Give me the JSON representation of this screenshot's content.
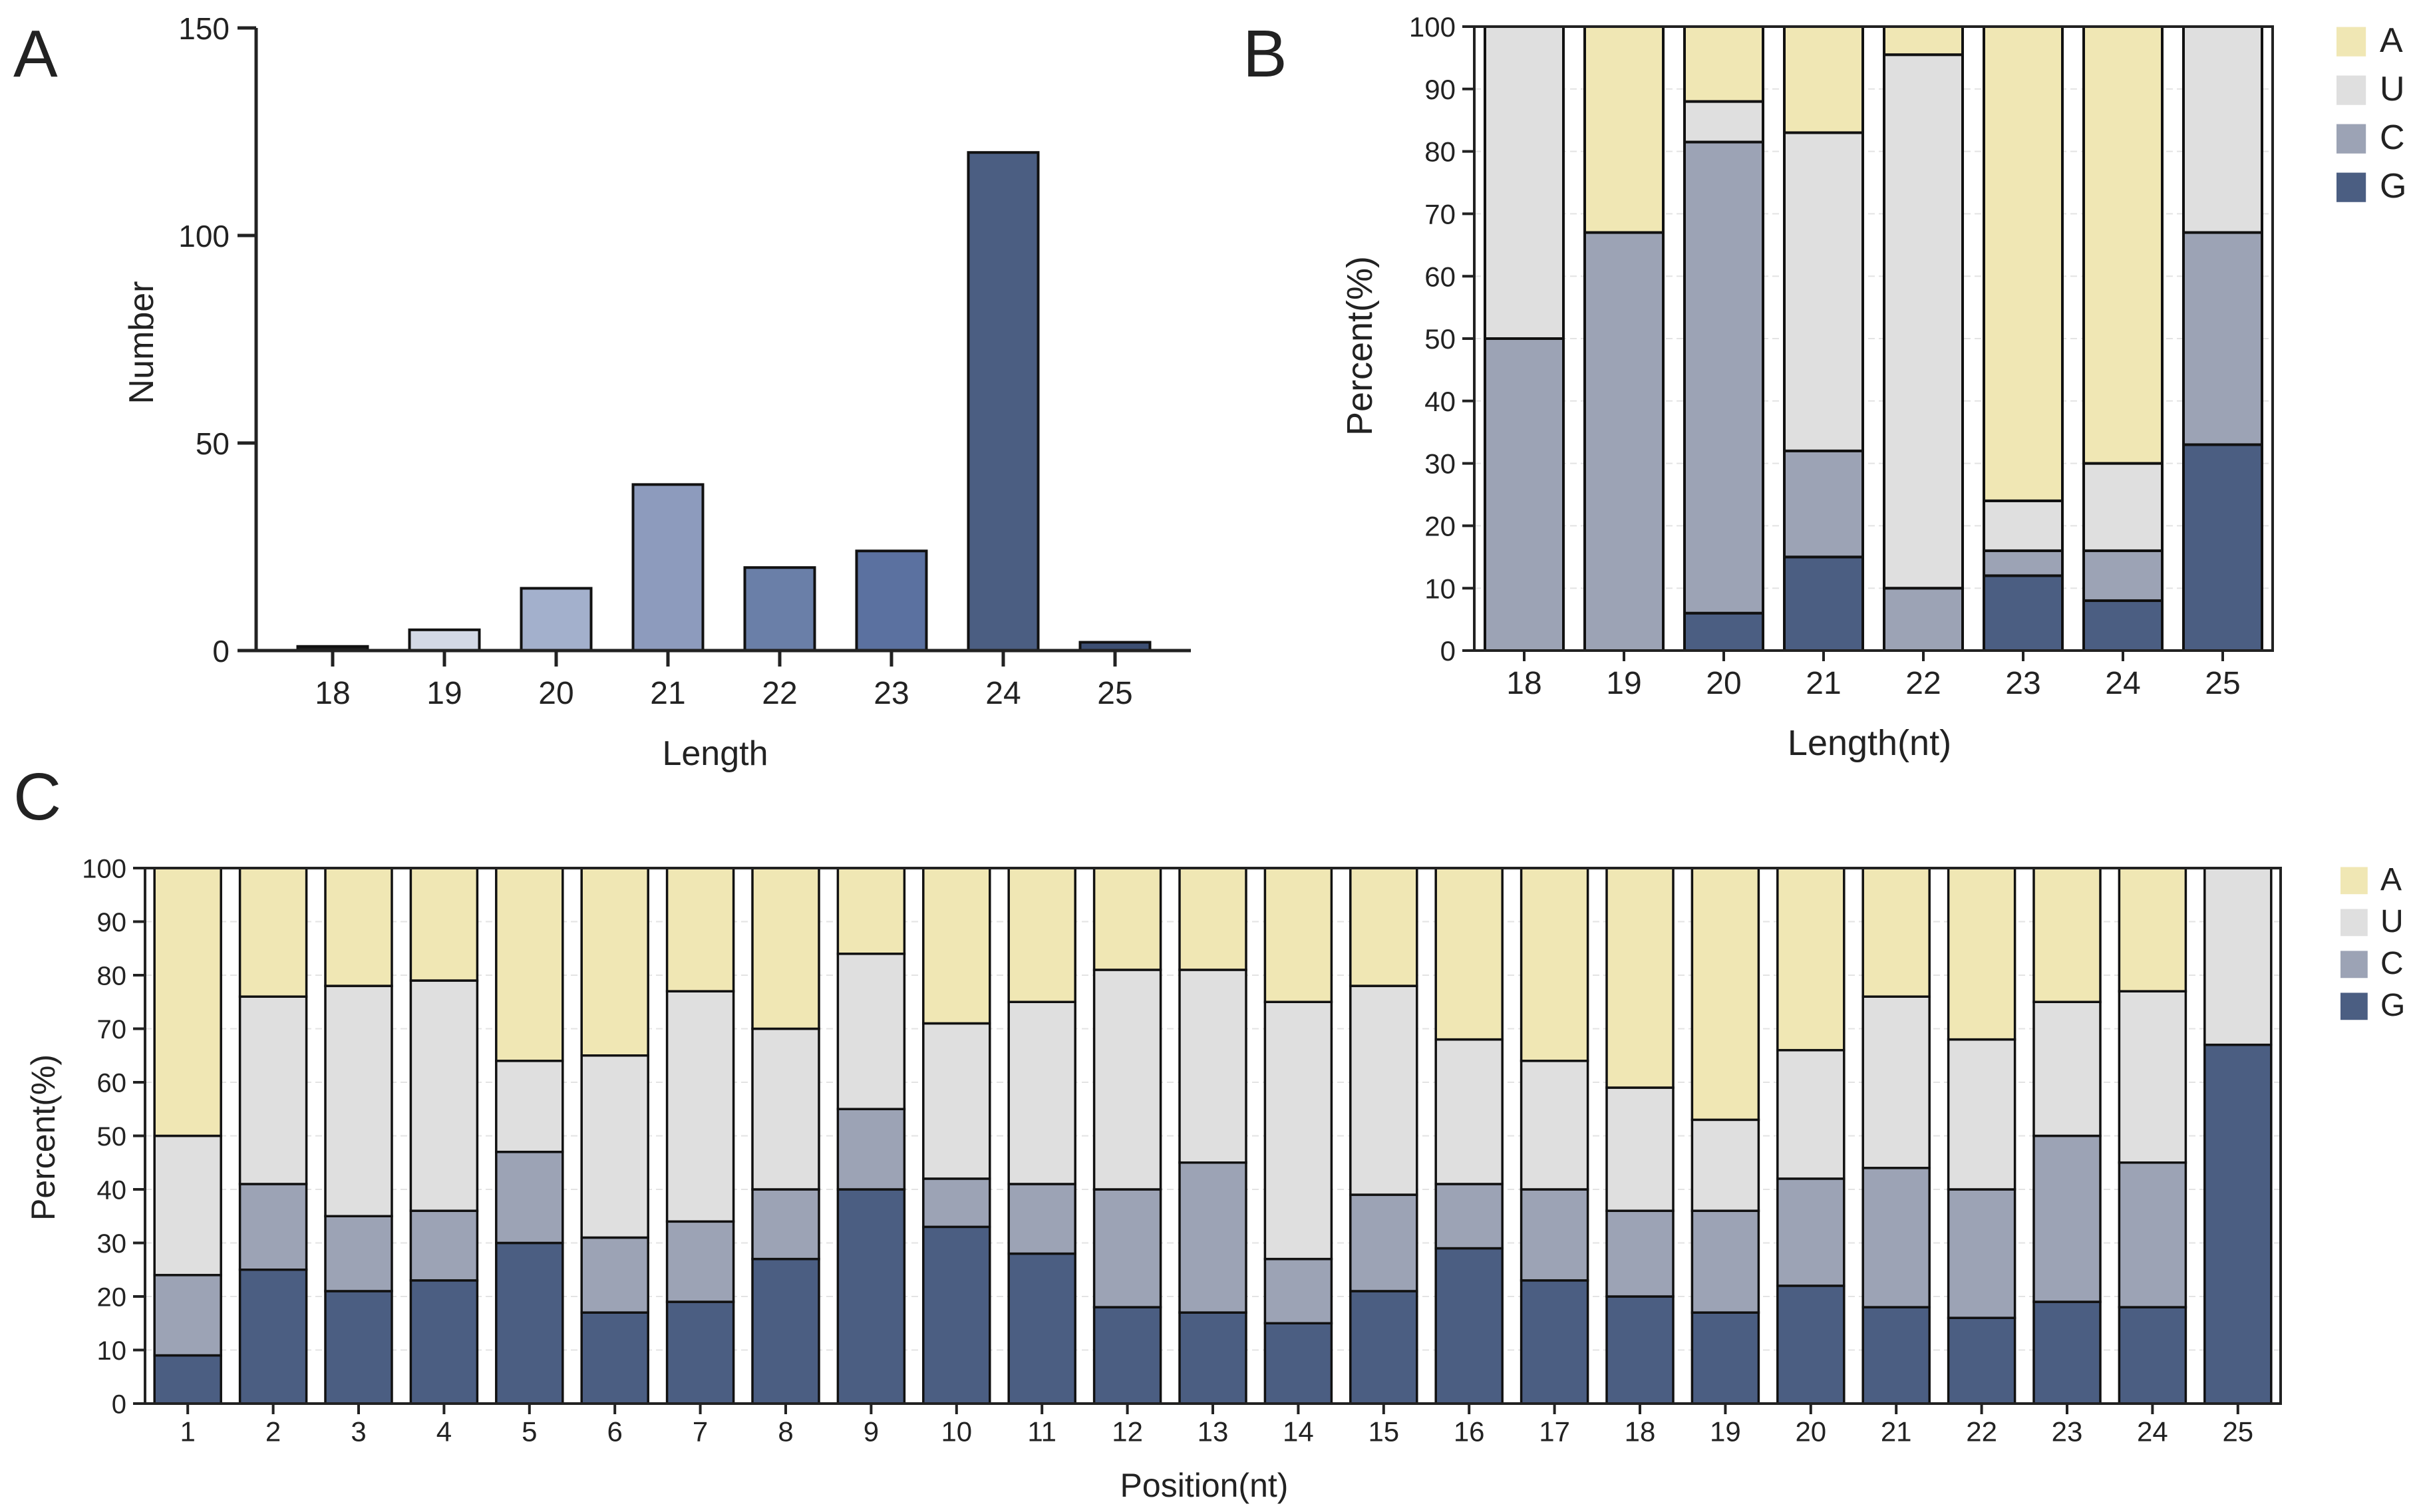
{
  "colors": {
    "A": "#f0e7b4",
    "U": "#dfdfdf",
    "C": "#9ca3b5",
    "G": "#4b5e82",
    "axis": "#222222"
  },
  "chart_data": [
    {
      "panel": "A",
      "type": "bar",
      "categories": [
        "18",
        "19",
        "20",
        "21",
        "22",
        "23",
        "24",
        "25"
      ],
      "values": [
        1,
        5,
        15,
        40,
        20,
        24,
        120,
        2
      ],
      "bar_colors": [
        "#1c1c1c",
        "#d3d9e6",
        "#a3b0cc",
        "#8d9bbd",
        "#6a7fa8",
        "#5b71a0",
        "#4b5e82",
        "#3d4f73"
      ],
      "xlabel": "Length",
      "ylabel": "Number",
      "ylim": [
        0,
        150
      ],
      "yticks": [
        0,
        50,
        100,
        150
      ]
    },
    {
      "panel": "B",
      "type": "bar",
      "stacked": true,
      "categories": [
        "18",
        "19",
        "20",
        "21",
        "22",
        "23",
        "24",
        "25"
      ],
      "series": [
        {
          "name": "G",
          "values": [
            0,
            0,
            6,
            15,
            0,
            12,
            8,
            33
          ]
        },
        {
          "name": "C",
          "values": [
            50,
            67,
            75.5,
            17,
            10,
            4,
            8,
            34
          ]
        },
        {
          "name": "U",
          "values": [
            50,
            0,
            6.5,
            51,
            85.5,
            8,
            14,
            33
          ]
        },
        {
          "name": "A",
          "values": [
            0,
            33,
            12,
            17,
            4.5,
            76,
            70,
            0
          ]
        }
      ],
      "xlabel": "Length(nt)",
      "ylabel": "Percent(%)",
      "ylim": [
        0,
        100
      ],
      "yticks": [
        0,
        10,
        20,
        30,
        40,
        50,
        60,
        70,
        80,
        90,
        100
      ],
      "legend": [
        "A",
        "U",
        "C",
        "G"
      ],
      "legend_position": "right"
    },
    {
      "panel": "C",
      "type": "bar",
      "stacked": true,
      "categories": [
        "1",
        "2",
        "3",
        "4",
        "5",
        "6",
        "7",
        "8",
        "9",
        "10",
        "11",
        "12",
        "13",
        "14",
        "15",
        "16",
        "17",
        "18",
        "19",
        "20",
        "21",
        "22",
        "23",
        "24",
        "25"
      ],
      "series": [
        {
          "name": "G",
          "values": [
            9,
            25,
            21,
            23,
            30,
            17,
            19,
            27,
            40,
            33,
            28,
            18,
            17,
            15,
            21,
            29,
            23,
            20,
            17,
            22,
            18,
            16,
            19,
            18,
            67
          ]
        },
        {
          "name": "C",
          "values": [
            15,
            16,
            14,
            13,
            17,
            14,
            15,
            13,
            15,
            9,
            13,
            22,
            28,
            12,
            18,
            12,
            17,
            16,
            19,
            20,
            26,
            24,
            31,
            27,
            0
          ]
        },
        {
          "name": "U",
          "values": [
            26,
            35,
            43,
            43,
            17,
            34,
            43,
            30,
            29,
            29,
            34,
            41,
            36,
            48,
            39,
            27,
            24,
            23,
            17,
            24,
            32,
            28,
            25,
            32,
            33
          ]
        },
        {
          "name": "A",
          "values": [
            50,
            24,
            22,
            21,
            36,
            35,
            23,
            30,
            16,
            29,
            25,
            19,
            19,
            25,
            22,
            32,
            36,
            41,
            47,
            34,
            24,
            32,
            25,
            23,
            0
          ]
        }
      ],
      "xlabel": "Position(nt)",
      "ylabel": "Percent(%)",
      "ylim": [
        0,
        100
      ],
      "yticks": [
        0,
        10,
        20,
        30,
        40,
        50,
        60,
        70,
        80,
        90,
        100
      ],
      "legend": [
        "A",
        "U",
        "C",
        "G"
      ],
      "legend_position": "right"
    }
  ]
}
